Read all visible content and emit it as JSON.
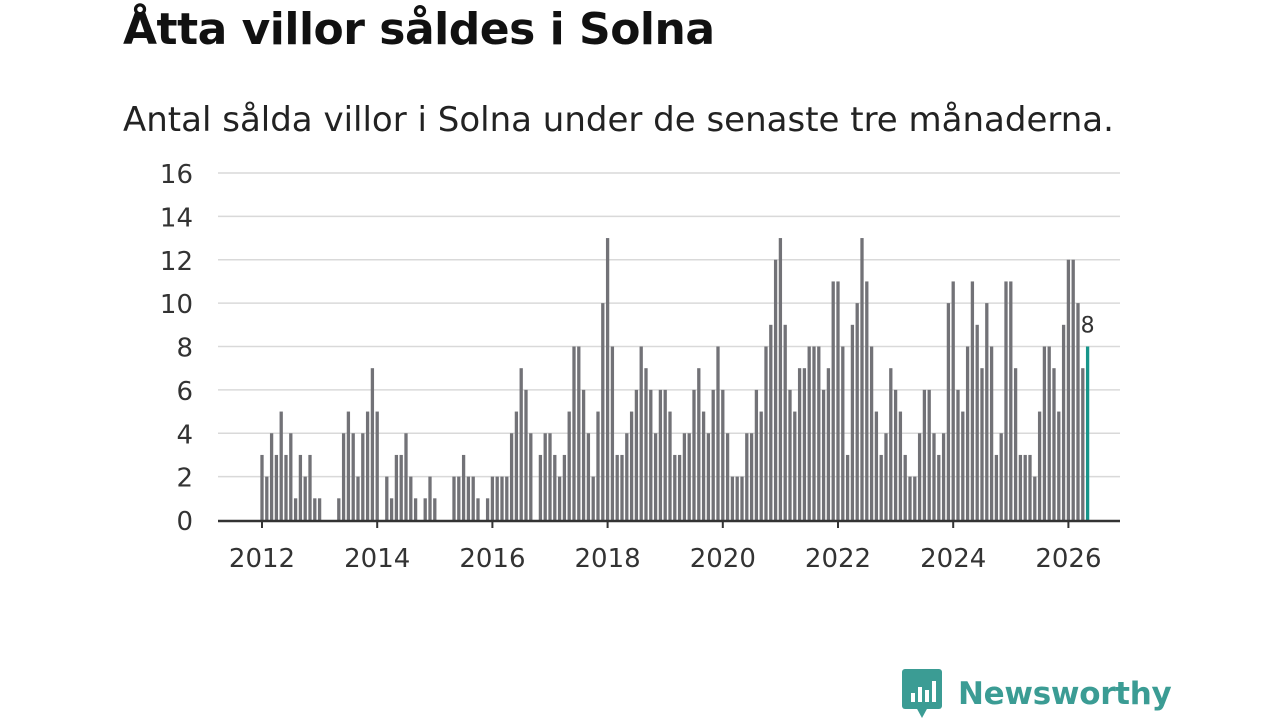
{
  "header": {
    "title": "Åtta villor såldes i Solna",
    "subtitle": "Antal sålda villor i Solna under de senaste tre månaderna."
  },
  "brand": {
    "name": "Newsworthy"
  },
  "colors": {
    "bar": "#727277",
    "highlight": "#17958a",
    "grid": "#d9d9d9",
    "axis": "#333333",
    "brand": "#3b9c94"
  },
  "chart_data": {
    "type": "bar",
    "title": "Åtta villor såldes i Solna",
    "subtitle": "Antal sålda villor i Solna under de senaste tre månaderna.",
    "xlabel": "",
    "ylabel": "",
    "ylim": [
      0,
      16
    ],
    "yticks": [
      "0",
      "2",
      "4",
      "6",
      "8",
      "10",
      "12",
      "14",
      "16"
    ],
    "xticks": [
      "2012",
      "2014",
      "2016",
      "2018",
      "2020",
      "2022",
      "2024",
      "2026"
    ],
    "start": "2012-01",
    "grid": true,
    "highlight_label": "8",
    "values": [
      3,
      2,
      4,
      3,
      5,
      3,
      4,
      1,
      3,
      2,
      3,
      1,
      1,
      0,
      0,
      0,
      1,
      4,
      5,
      4,
      2,
      4,
      5,
      7,
      5,
      0,
      2,
      1,
      3,
      3,
      4,
      2,
      1,
      0,
      1,
      2,
      1,
      0,
      0,
      0,
      2,
      2,
      3,
      2,
      2,
      1,
      0,
      1,
      2,
      2,
      2,
      2,
      4,
      5,
      7,
      6,
      4,
      0,
      3,
      4,
      4,
      3,
      2,
      3,
      5,
      8,
      8,
      6,
      4,
      2,
      5,
      10,
      13,
      8,
      3,
      3,
      4,
      5,
      6,
      8,
      7,
      6,
      4,
      6,
      6,
      5,
      3,
      3,
      4,
      4,
      6,
      7,
      5,
      4,
      6,
      8,
      6,
      4,
      2,
      2,
      2,
      4,
      4,
      6,
      5,
      8,
      9,
      12,
      13,
      9,
      6,
      5,
      7,
      7,
      8,
      8,
      8,
      6,
      7,
      11,
      11,
      8,
      3,
      9,
      10,
      13,
      11,
      8,
      5,
      3,
      4,
      7,
      6,
      5,
      3,
      2,
      2,
      4,
      6,
      6,
      4,
      3,
      4,
      10,
      11,
      6,
      5,
      8,
      11,
      9,
      7,
      10,
      8,
      3,
      4,
      11,
      11,
      7,
      3,
      3,
      3,
      2,
      5,
      8,
      8,
      7,
      5,
      9,
      12,
      12,
      10,
      7,
      8
    ]
  }
}
